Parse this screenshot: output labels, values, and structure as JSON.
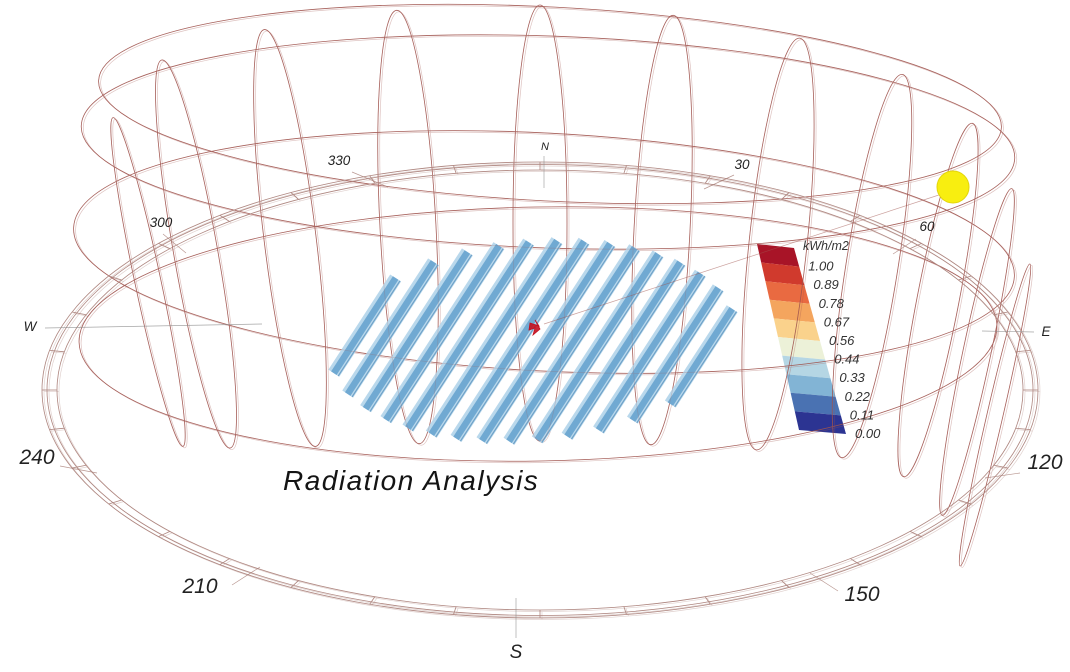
{
  "scene": {
    "title": "Radiation Analysis",
    "background": "#ffffff",
    "wireframe_color": "#a0544e",
    "ring_color": "#a87d76",
    "leader_color": "#8f8f8f",
    "label_color": "#222222",
    "sun": {
      "color": "#f8ee10",
      "stroke": "#e3d50a"
    },
    "center_marker_color": "#c3101f",
    "panels": {
      "edge_color": "#b9d8ec",
      "face_color": "#70a9d2",
      "shade_color": "#5b93be"
    },
    "compass": {
      "labels": [
        "N",
        "30",
        "60",
        "E",
        "120",
        "150",
        "S",
        "210",
        "240",
        "W",
        "300",
        "330"
      ]
    },
    "legend": {
      "title": "kWh/m2",
      "ticks": [
        "1.00",
        "0.89",
        "0.78",
        "0.67",
        "0.56",
        "0.44",
        "0.33",
        "0.22",
        "0.11",
        "0.00"
      ],
      "colors": [
        "#a81427",
        "#d03a2d",
        "#e96a41",
        "#f4a55e",
        "#fad28c",
        "#ecf1d8",
        "#b5d6e4",
        "#82b4d5",
        "#4a72b2",
        "#2c3492"
      ]
    }
  },
  "chart_data": {
    "type": "heatmap",
    "title": "Radiation Analysis",
    "legend_title": "kWh/m2",
    "scale": {
      "min": 0.0,
      "max": 1.0,
      "tick_values": [
        1.0,
        0.89,
        0.78,
        0.67,
        0.56,
        0.44,
        0.33,
        0.22,
        0.11,
        0.0
      ],
      "colors_high_to_low": [
        "#a81427",
        "#d03a2d",
        "#e96a41",
        "#f4a55e",
        "#fad28c",
        "#ecf1d8",
        "#b5d6e4",
        "#82b4d5",
        "#4a72b2",
        "#2c3492"
      ]
    },
    "compass_labels": [
      "N",
      "30",
      "60",
      "E",
      "120",
      "150",
      "S",
      "210",
      "240",
      "W",
      "300",
      "330"
    ],
    "elements": [
      "sun-path wireframe dome",
      "ground compass ring",
      "louver panel array (low radiation, blue)",
      "sun position marker",
      "analysis center point"
    ]
  }
}
